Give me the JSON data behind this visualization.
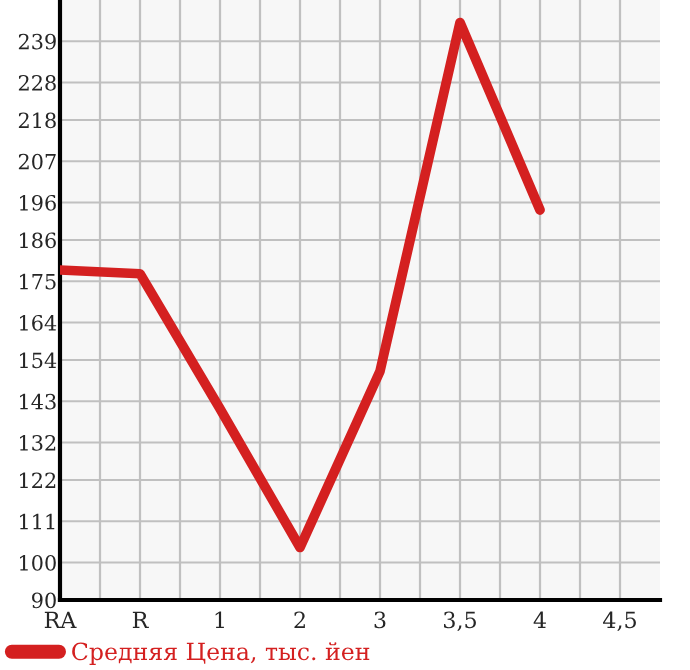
{
  "chart_data": {
    "type": "line",
    "categories": [
      "RA",
      "R",
      "1",
      "2",
      "3",
      "3,5",
      "4",
      "4,5"
    ],
    "series": [
      {
        "name": "Средняя Цена, тыс. йен",
        "color": "#d42020",
        "values": [
          178,
          177,
          141,
          104,
          151,
          244,
          194,
          null
        ]
      }
    ],
    "ylim": [
      90,
      250
    ],
    "yticks": [
      90,
      100,
      111,
      122,
      132,
      143,
      154,
      164,
      175,
      186,
      196,
      207,
      218,
      228,
      239
    ],
    "grid": true,
    "legend": "bottom",
    "marker": "none",
    "line_style": "solid"
  }
}
